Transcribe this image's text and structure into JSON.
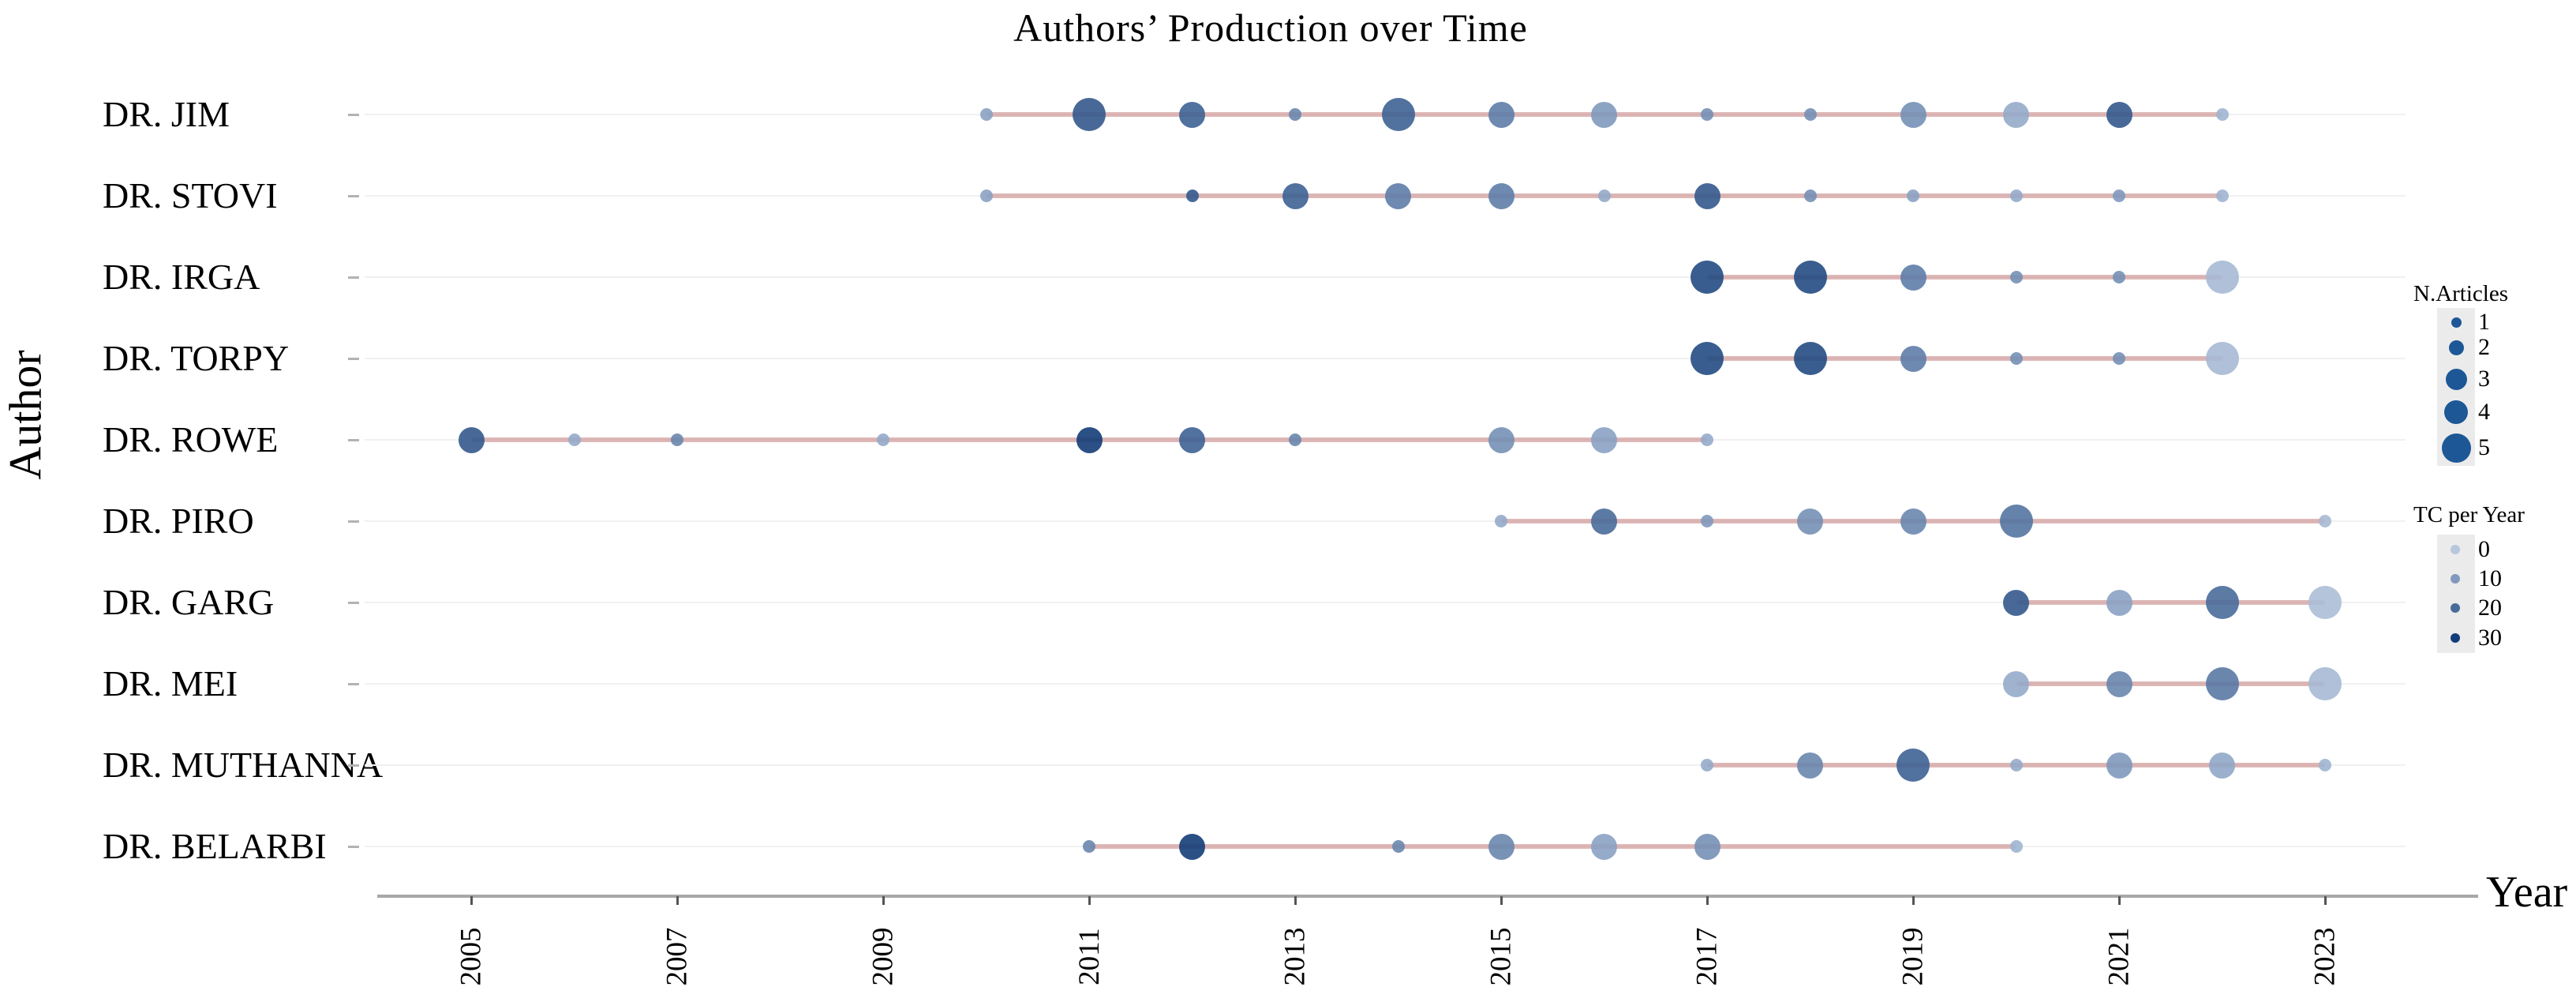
{
  "page": {
    "background": "#ffffff"
  },
  "chart_data": {
    "type": "scatter",
    "title": "Authors’ Production over Time",
    "xlabel": "Year",
    "ylabel": "Author",
    "x_ticks": [
      2005,
      2007,
      2009,
      2011,
      2013,
      2015,
      2017,
      2019,
      2021,
      2023
    ],
    "x_range": [
      2004.5,
      2023.5
    ],
    "grid": "horizontal-faint",
    "legend_position": "right",
    "size_legend": {
      "title": "N.Articles",
      "items": [
        1,
        2,
        3,
        4,
        5
      ]
    },
    "color_legend": {
      "title": "TC per Year",
      "items": [
        0,
        10,
        20,
        30
      ]
    },
    "colors": {
      "dot_scale_light": "#b6c7de",
      "dot_scale_dark": "#133d78",
      "legend_dot": "#1d5796",
      "timeline_line": "rgba(197,126,126,0.55)",
      "axis": "#a8a8a8",
      "gridline": "#f0f0f0",
      "legend_box": "#ebebeb",
      "text": "#000000"
    },
    "series": [
      {
        "author": "DR. JIM",
        "start": 2010,
        "end": 2022,
        "points": [
          {
            "year": 2010,
            "n": 1,
            "tc": 8
          },
          {
            "year": 2011,
            "n": 3,
            "tc": 24
          },
          {
            "year": 2012,
            "n": 2,
            "tc": 22
          },
          {
            "year": 2013,
            "n": 1,
            "tc": 14
          },
          {
            "year": 2014,
            "n": 3,
            "tc": 22
          },
          {
            "year": 2015,
            "n": 2,
            "tc": 16
          },
          {
            "year": 2016,
            "n": 2,
            "tc": 10
          },
          {
            "year": 2017,
            "n": 1,
            "tc": 12
          },
          {
            "year": 2018,
            "n": 1,
            "tc": 12
          },
          {
            "year": 2019,
            "n": 2,
            "tc": 12
          },
          {
            "year": 2020,
            "n": 2,
            "tc": 6
          },
          {
            "year": 2021,
            "n": 2,
            "tc": 24
          },
          {
            "year": 2022,
            "n": 1,
            "tc": 4
          }
        ]
      },
      {
        "author": "DR. STOVI",
        "start": 2010,
        "end": 2022,
        "points": [
          {
            "year": 2010,
            "n": 1,
            "tc": 8
          },
          {
            "year": 2012,
            "n": 1,
            "tc": 24
          },
          {
            "year": 2013,
            "n": 2,
            "tc": 22
          },
          {
            "year": 2014,
            "n": 2,
            "tc": 16
          },
          {
            "year": 2015,
            "n": 2,
            "tc": 16
          },
          {
            "year": 2016,
            "n": 1,
            "tc": 6
          },
          {
            "year": 2017,
            "n": 2,
            "tc": 24
          },
          {
            "year": 2018,
            "n": 1,
            "tc": 12
          },
          {
            "year": 2019,
            "n": 1,
            "tc": 8
          },
          {
            "year": 2020,
            "n": 1,
            "tc": 6
          },
          {
            "year": 2021,
            "n": 1,
            "tc": 10
          },
          {
            "year": 2022,
            "n": 1,
            "tc": 4
          }
        ]
      },
      {
        "author": "DR. IRGA",
        "start": 2017,
        "end": 2022,
        "points": [
          {
            "year": 2017,
            "n": 3,
            "tc": 27
          },
          {
            "year": 2018,
            "n": 3,
            "tc": 27
          },
          {
            "year": 2019,
            "n": 2,
            "tc": 16
          },
          {
            "year": 2020,
            "n": 1,
            "tc": 12
          },
          {
            "year": 2021,
            "n": 1,
            "tc": 12
          },
          {
            "year": 2022,
            "n": 3,
            "tc": 3
          }
        ]
      },
      {
        "author": "DR. TORPY",
        "start": 2017,
        "end": 2022,
        "points": [
          {
            "year": 2017,
            "n": 3,
            "tc": 27
          },
          {
            "year": 2018,
            "n": 3,
            "tc": 27
          },
          {
            "year": 2019,
            "n": 2,
            "tc": 16
          },
          {
            "year": 2020,
            "n": 1,
            "tc": 12
          },
          {
            "year": 2021,
            "n": 1,
            "tc": 12
          },
          {
            "year": 2022,
            "n": 3,
            "tc": 3
          }
        ]
      },
      {
        "author": "DR. ROWE",
        "start": 2005,
        "end": 2017,
        "points": [
          {
            "year": 2005,
            "n": 2,
            "tc": 24
          },
          {
            "year": 2006,
            "n": 1,
            "tc": 6
          },
          {
            "year": 2007,
            "n": 1,
            "tc": 14
          },
          {
            "year": 2009,
            "n": 1,
            "tc": 6
          },
          {
            "year": 2011,
            "n": 2,
            "tc": 30
          },
          {
            "year": 2012,
            "n": 2,
            "tc": 22
          },
          {
            "year": 2013,
            "n": 1,
            "tc": 14
          },
          {
            "year": 2015,
            "n": 2,
            "tc": 12
          },
          {
            "year": 2016,
            "n": 2,
            "tc": 8
          },
          {
            "year": 2017,
            "n": 1,
            "tc": 6
          }
        ]
      },
      {
        "author": "DR. PIRO",
        "start": 2015,
        "end": 2023,
        "points": [
          {
            "year": 2015,
            "n": 1,
            "tc": 6
          },
          {
            "year": 2016,
            "n": 2,
            "tc": 20
          },
          {
            "year": 2017,
            "n": 1,
            "tc": 10
          },
          {
            "year": 2018,
            "n": 2,
            "tc": 12
          },
          {
            "year": 2019,
            "n": 2,
            "tc": 14
          },
          {
            "year": 2020,
            "n": 3,
            "tc": 18
          },
          {
            "year": 2023,
            "n": 1,
            "tc": 3
          }
        ]
      },
      {
        "author": "DR. GARG",
        "start": 2020,
        "end": 2023,
        "points": [
          {
            "year": 2020,
            "n": 2,
            "tc": 24
          },
          {
            "year": 2021,
            "n": 2,
            "tc": 8
          },
          {
            "year": 2022,
            "n": 3,
            "tc": 20
          },
          {
            "year": 2023,
            "n": 3,
            "tc": 2
          }
        ]
      },
      {
        "author": "DR. MEI",
        "start": 2020,
        "end": 2023,
        "points": [
          {
            "year": 2020,
            "n": 2,
            "tc": 6
          },
          {
            "year": 2021,
            "n": 2,
            "tc": 14
          },
          {
            "year": 2022,
            "n": 3,
            "tc": 17
          },
          {
            "year": 2023,
            "n": 3,
            "tc": 3
          }
        ]
      },
      {
        "author": "DR. MUTHANNA",
        "start": 2017,
        "end": 2023,
        "points": [
          {
            "year": 2017,
            "n": 1,
            "tc": 6
          },
          {
            "year": 2018,
            "n": 2,
            "tc": 14
          },
          {
            "year": 2019,
            "n": 3,
            "tc": 22
          },
          {
            "year": 2020,
            "n": 1,
            "tc": 6
          },
          {
            "year": 2021,
            "n": 2,
            "tc": 10
          },
          {
            "year": 2022,
            "n": 2,
            "tc": 7
          },
          {
            "year": 2023,
            "n": 1,
            "tc": 4
          }
        ]
      },
      {
        "author": "DR. BELARBI",
        "start": 2011,
        "end": 2020,
        "points": [
          {
            "year": 2011,
            "n": 1,
            "tc": 14
          },
          {
            "year": 2012,
            "n": 2,
            "tc": 30
          },
          {
            "year": 2014,
            "n": 1,
            "tc": 14
          },
          {
            "year": 2015,
            "n": 2,
            "tc": 14
          },
          {
            "year": 2016,
            "n": 2,
            "tc": 8
          },
          {
            "year": 2017,
            "n": 2,
            "tc": 12
          },
          {
            "year": 2020,
            "n": 1,
            "tc": 4
          }
        ]
      }
    ]
  }
}
